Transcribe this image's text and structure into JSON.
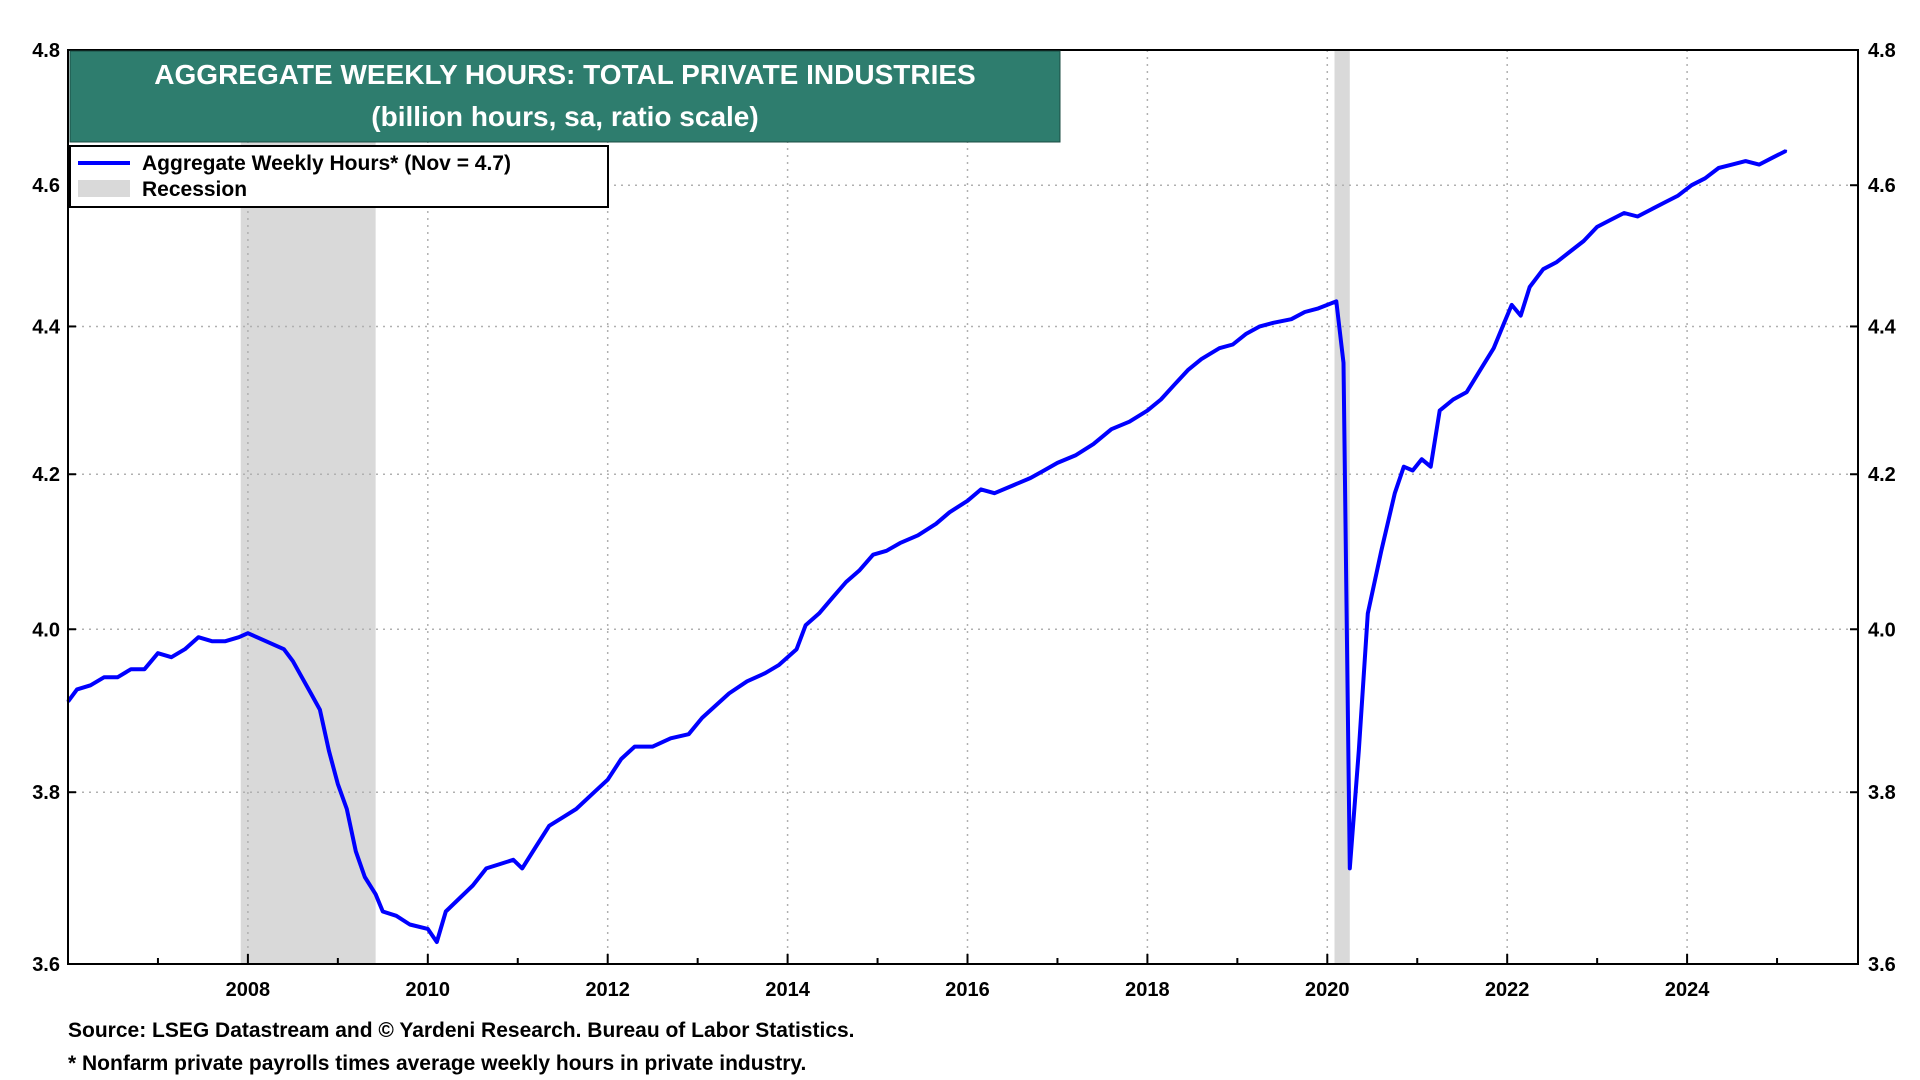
{
  "title": "AGGREGATE WEEKLY HOURS: TOTAL PRIVATE INDUSTRIES",
  "subtitle": "(billion hours, sa, ratio scale)",
  "footnotes": {
    "source": "Source: LSEG Datastream and © Yardeni Research. Bureau of Labor Statistics.",
    "note": "* Nonfarm private payrolls times average weekly hours in private industry."
  },
  "colors": {
    "title_bg": "#2e7d6e",
    "line": "#0000ff",
    "recession": "#d9d9d9",
    "grid": "#b0b0b0"
  },
  "chart_data": {
    "type": "line",
    "title": "AGGREGATE WEEKLY HOURS: TOTAL PRIVATE INDUSTRIES",
    "subtitle": "(billion hours, sa, ratio scale)",
    "scale": "log",
    "xlim": [
      2006.0,
      2025.9
    ],
    "ylim": [
      3.6,
      4.8
    ],
    "xticks": [
      2008,
      2010,
      2012,
      2014,
      2016,
      2018,
      2020,
      2022,
      2024
    ],
    "yticks": [
      3.6,
      3.8,
      4.0,
      4.2,
      4.4,
      4.6,
      4.8
    ],
    "grid": true,
    "legend_position": "top-left",
    "legend": [
      {
        "label": "Aggregate Weekly Hours* (Nov = 4.7)",
        "kind": "line"
      },
      {
        "label": "Recession",
        "kind": "area"
      }
    ],
    "recessions": [
      {
        "start": 2007.92,
        "end": 2009.42
      },
      {
        "start": 2020.08,
        "end": 2020.25
      }
    ],
    "series": [
      {
        "name": "Aggregate Weekly Hours* (Nov = 4.7)",
        "points": [
          [
            2006.0,
            3.91
          ],
          [
            2006.1,
            3.925
          ],
          [
            2006.25,
            3.93
          ],
          [
            2006.4,
            3.94
          ],
          [
            2006.55,
            3.94
          ],
          [
            2006.7,
            3.95
          ],
          [
            2006.85,
            3.95
          ],
          [
            2007.0,
            3.97
          ],
          [
            2007.15,
            3.965
          ],
          [
            2007.3,
            3.975
          ],
          [
            2007.45,
            3.99
          ],
          [
            2007.6,
            3.985
          ],
          [
            2007.75,
            3.985
          ],
          [
            2007.9,
            3.99
          ],
          [
            2008.0,
            3.995
          ],
          [
            2008.1,
            3.99
          ],
          [
            2008.2,
            3.985
          ],
          [
            2008.3,
            3.98
          ],
          [
            2008.4,
            3.975
          ],
          [
            2008.5,
            3.96
          ],
          [
            2008.6,
            3.94
          ],
          [
            2008.7,
            3.92
          ],
          [
            2008.8,
            3.9
          ],
          [
            2008.9,
            3.85
          ],
          [
            2009.0,
            3.81
          ],
          [
            2009.1,
            3.78
          ],
          [
            2009.2,
            3.73
          ],
          [
            2009.3,
            3.7
          ],
          [
            2009.42,
            3.68
          ],
          [
            2009.5,
            3.66
          ],
          [
            2009.65,
            3.655
          ],
          [
            2009.8,
            3.645
          ],
          [
            2010.0,
            3.64
          ],
          [
            2010.1,
            3.625
          ],
          [
            2010.2,
            3.66
          ],
          [
            2010.35,
            3.675
          ],
          [
            2010.5,
            3.69
          ],
          [
            2010.65,
            3.71
          ],
          [
            2010.8,
            3.715
          ],
          [
            2010.95,
            3.72
          ],
          [
            2011.05,
            3.71
          ],
          [
            2011.2,
            3.735
          ],
          [
            2011.35,
            3.76
          ],
          [
            2011.5,
            3.77
          ],
          [
            2011.65,
            3.78
          ],
          [
            2011.85,
            3.8
          ],
          [
            2012.0,
            3.815
          ],
          [
            2012.15,
            3.84
          ],
          [
            2012.3,
            3.855
          ],
          [
            2012.5,
            3.855
          ],
          [
            2012.7,
            3.865
          ],
          [
            2012.9,
            3.87
          ],
          [
            2013.05,
            3.89
          ],
          [
            2013.2,
            3.905
          ],
          [
            2013.35,
            3.92
          ],
          [
            2013.55,
            3.935
          ],
          [
            2013.75,
            3.945
          ],
          [
            2013.9,
            3.955
          ],
          [
            2014.0,
            3.965
          ],
          [
            2014.1,
            3.975
          ],
          [
            2014.2,
            4.005
          ],
          [
            2014.35,
            4.02
          ],
          [
            2014.5,
            4.04
          ],
          [
            2014.65,
            4.06
          ],
          [
            2014.8,
            4.075
          ],
          [
            2014.95,
            4.095
          ],
          [
            2015.1,
            4.1
          ],
          [
            2015.25,
            4.11
          ],
          [
            2015.45,
            4.12
          ],
          [
            2015.65,
            4.135
          ],
          [
            2015.8,
            4.15
          ],
          [
            2016.0,
            4.165
          ],
          [
            2016.15,
            4.18
          ],
          [
            2016.3,
            4.175
          ],
          [
            2016.5,
            4.185
          ],
          [
            2016.7,
            4.195
          ],
          [
            2016.85,
            4.205
          ],
          [
            2017.0,
            4.215
          ],
          [
            2017.2,
            4.225
          ],
          [
            2017.4,
            4.24
          ],
          [
            2017.6,
            4.26
          ],
          [
            2017.8,
            4.27
          ],
          [
            2018.0,
            4.285
          ],
          [
            2018.15,
            4.3
          ],
          [
            2018.3,
            4.32
          ],
          [
            2018.45,
            4.34
          ],
          [
            2018.6,
            4.355
          ],
          [
            2018.8,
            4.37
          ],
          [
            2018.95,
            4.375
          ],
          [
            2019.1,
            4.39
          ],
          [
            2019.25,
            4.4
          ],
          [
            2019.4,
            4.405
          ],
          [
            2019.6,
            4.41
          ],
          [
            2019.75,
            4.42
          ],
          [
            2019.9,
            4.425
          ],
          [
            2020.0,
            4.43
          ],
          [
            2020.1,
            4.435
          ],
          [
            2020.18,
            4.35
          ],
          [
            2020.25,
            3.71
          ],
          [
            2020.35,
            3.85
          ],
          [
            2020.45,
            4.02
          ],
          [
            2020.6,
            4.1
          ],
          [
            2020.75,
            4.175
          ],
          [
            2020.85,
            4.21
          ],
          [
            2020.95,
            4.205
          ],
          [
            2021.05,
            4.22
          ],
          [
            2021.15,
            4.21
          ],
          [
            2021.25,
            4.285
          ],
          [
            2021.4,
            4.3
          ],
          [
            2021.55,
            4.31
          ],
          [
            2021.7,
            4.34
          ],
          [
            2021.85,
            4.37
          ],
          [
            2021.95,
            4.4
          ],
          [
            2022.05,
            4.43
          ],
          [
            2022.15,
            4.415
          ],
          [
            2022.25,
            4.455
          ],
          [
            2022.4,
            4.48
          ],
          [
            2022.55,
            4.49
          ],
          [
            2022.7,
            4.505
          ],
          [
            2022.85,
            4.52
          ],
          [
            2023.0,
            4.54
          ],
          [
            2023.15,
            4.55
          ],
          [
            2023.3,
            4.56
          ],
          [
            2023.45,
            4.555
          ],
          [
            2023.6,
            4.565
          ],
          [
            2023.75,
            4.575
          ],
          [
            2023.9,
            4.585
          ],
          [
            2024.05,
            4.6
          ],
          [
            2024.2,
            4.61
          ],
          [
            2024.35,
            4.625
          ],
          [
            2024.5,
            4.63
          ],
          [
            2024.65,
            4.635
          ],
          [
            2024.8,
            4.63
          ],
          [
            2024.95,
            4.64
          ],
          [
            2025.1,
            4.65
          ]
        ]
      }
    ]
  }
}
